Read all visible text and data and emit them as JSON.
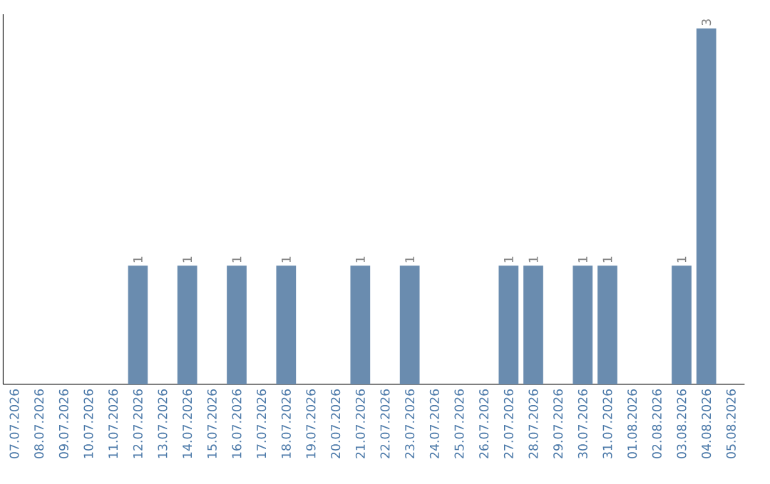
{
  "chart_data": {
    "type": "bar",
    "categories": [
      "07.07.2026",
      "08.07.2026",
      "09.07.2026",
      "10.07.2026",
      "11.07.2026",
      "12.07.2026",
      "13.07.2026",
      "14.07.2026",
      "15.07.2026",
      "16.07.2026",
      "17.07.2026",
      "18.07.2026",
      "19.07.2026",
      "20.07.2026",
      "21.07.2026",
      "22.07.2026",
      "23.07.2026",
      "24.07.2026",
      "25.07.2026",
      "26.07.2026",
      "27.07.2026",
      "28.07.2026",
      "29.07.2026",
      "30.07.2026",
      "31.07.2026",
      "01.08.2026",
      "02.08.2026",
      "03.08.2026",
      "04.08.2026",
      "05.08.2026"
    ],
    "values": [
      null,
      null,
      null,
      null,
      null,
      1,
      null,
      1,
      null,
      1,
      null,
      1,
      null,
      null,
      1,
      null,
      1,
      null,
      null,
      null,
      1,
      1,
      null,
      1,
      1,
      null,
      null,
      1,
      3,
      null
    ],
    "value_labels": [
      null,
      null,
      null,
      null,
      null,
      "1",
      null,
      "1",
      null,
      "1",
      null,
      "1",
      null,
      null,
      "1",
      null,
      "1",
      null,
      null,
      null,
      "1",
      "1",
      null,
      "1",
      "1",
      null,
      null,
      "1",
      "3",
      null
    ],
    "color": "#6a8caf"
  }
}
